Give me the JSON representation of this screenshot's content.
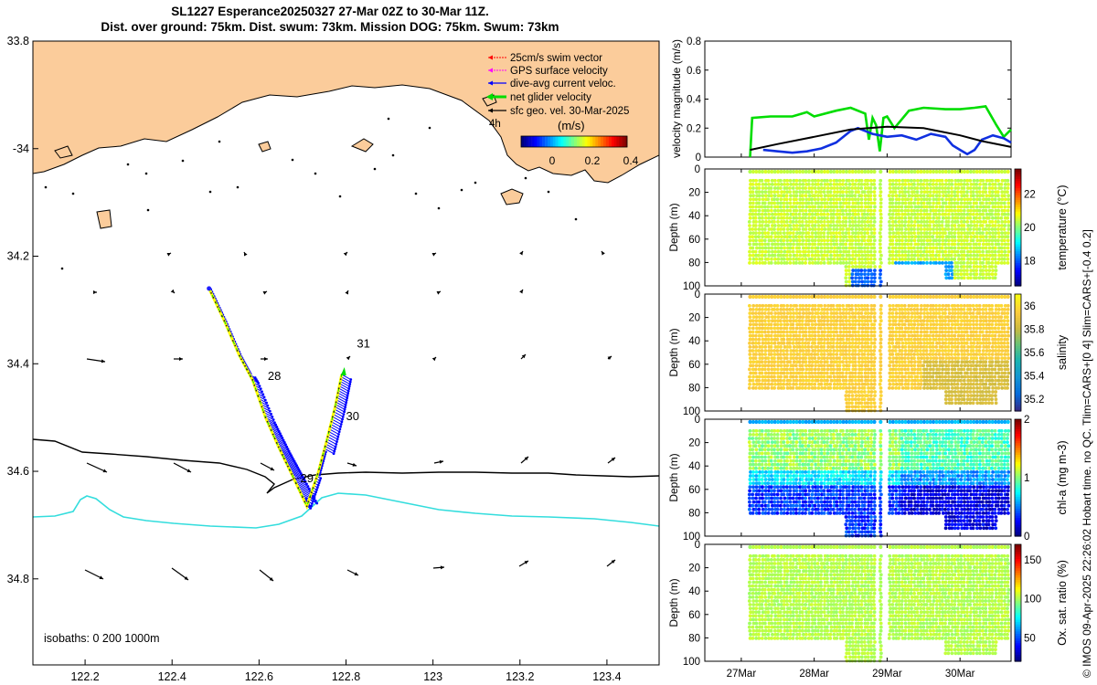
{
  "title": {
    "line1": "SL1227 Esperance20250327 27-Mar 02Z to 30-Mar 11Z.",
    "line2": "Dist. over ground: 75km. Dist. swum: 73km. Mission DOG: 75km. Swum: 73km"
  },
  "footer_note": "© IMOS 09-Apr-2025 22:26:02 Hobart time. no QC. Tlim=CARS+[0 4] Slim=CARS+[-0.4 0.2]",
  "colors": {
    "land": "#fbcc9b",
    "isobath_200": "#000000",
    "isobath_1000": "#33dddd",
    "track": "#ffff00",
    "gps_velocity": "#ff00ff",
    "swim_vector": "#ff0000",
    "current_vector": "#0000ff",
    "net_velocity": "#00dd00",
    "sfc_geo": "#000000"
  },
  "map": {
    "lon_ticks": [
      "122.2",
      "122.4",
      "122.6",
      "122.8",
      "123",
      "123.2",
      "123.4"
    ],
    "lon_range": [
      122.08,
      123.52
    ],
    "lat_ticks": [
      "33.8",
      "-34",
      "34.2",
      "34.4",
      "34.6",
      "34.8"
    ],
    "lat_tick_values": [
      33.8,
      34.0,
      34.2,
      34.4,
      34.6,
      34.8
    ],
    "lat_range": [
      33.8,
      34.96
    ],
    "legend_items": [
      {
        "label": "25cm/s swim vector",
        "color": "#ff0000"
      },
      {
        "label": "GPS surface velocity",
        "color": "#ff00ff"
      },
      {
        "label": "dive-avg current veloc.",
        "color": "#0000ff"
      },
      {
        "label": "net glider velocity",
        "color": "#00dd00"
      },
      {
        "label": "sfc geo. vel. 30-Mar-2025",
        "color": "#000000"
      }
    ],
    "legend_extra": "4h",
    "colorbar_title": "(m/s)",
    "colorbar_ticks": [
      "0",
      "0.2",
      "0.4"
    ],
    "isobath_label": "isobaths: 0   200  1000m",
    "day_labels": [
      {
        "text": "28",
        "lon": 122.62,
        "lat": 34.43
      },
      {
        "text": "29",
        "lon": 122.695,
        "lat": 34.62
      },
      {
        "text": "30",
        "lon": 122.8,
        "lat": 34.505
      },
      {
        "text": "31",
        "lon": 122.825,
        "lat": 34.37
      }
    ],
    "track": [
      [
        122.485,
        34.26
      ],
      [
        122.52,
        34.32
      ],
      [
        122.555,
        34.385
      ],
      [
        122.585,
        34.43
      ],
      [
        122.615,
        34.5
      ],
      [
        122.645,
        34.555
      ],
      [
        122.675,
        34.605
      ],
      [
        122.71,
        34.665
      ],
      [
        122.735,
        34.605
      ],
      [
        122.755,
        34.545
      ],
      [
        122.775,
        34.48
      ],
      [
        122.79,
        34.42
      ]
    ]
  },
  "chart_data": [
    {
      "type": "line",
      "ylabel": "velocity magnitude (m/s)",
      "ylim": [
        0,
        0.8
      ],
      "yticks": [
        "0",
        "0.2",
        "0.4",
        "0.6",
        "0.8"
      ],
      "x_range_days": [
        26.5,
        30.7
      ],
      "series": [
        {
          "name": "net glider velocity",
          "color": "#00dd00",
          "x": [
            27.12,
            27.15,
            27.4,
            27.7,
            27.9,
            28.0,
            28.3,
            28.5,
            28.7,
            28.75,
            28.8,
            28.85,
            28.9,
            28.95,
            29.0,
            29.1,
            29.3,
            29.5,
            29.8,
            30.0,
            30.2,
            30.35,
            30.5,
            30.6,
            30.7
          ],
          "y": [
            0.0,
            0.27,
            0.28,
            0.28,
            0.31,
            0.28,
            0.32,
            0.34,
            0.3,
            0.12,
            0.27,
            0.22,
            0.04,
            0.27,
            0.28,
            0.2,
            0.32,
            0.34,
            0.33,
            0.33,
            0.34,
            0.35,
            0.22,
            0.14,
            0.19
          ]
        },
        {
          "name": "dive-avg current",
          "color": "#1030e0",
          "x": [
            27.3,
            27.5,
            27.7,
            27.9,
            28.1,
            28.3,
            28.5,
            28.6,
            28.7,
            28.8,
            28.9,
            29.0,
            29.2,
            29.4,
            29.6,
            29.8,
            29.9,
            30.0,
            30.1,
            30.2,
            30.3,
            30.45,
            30.6,
            30.7
          ],
          "y": [
            0.05,
            0.04,
            0.03,
            0.04,
            0.06,
            0.1,
            0.18,
            0.2,
            0.18,
            0.16,
            0.15,
            0.14,
            0.15,
            0.12,
            0.16,
            0.14,
            0.08,
            0.05,
            0.02,
            0.05,
            0.12,
            0.15,
            0.13,
            0.1
          ]
        },
        {
          "name": "sfc geo. vel.",
          "color": "#000000",
          "x": [
            27.12,
            27.5,
            28.0,
            28.5,
            29.0,
            29.5,
            30.0,
            30.3,
            30.7
          ],
          "y": [
            0.05,
            0.09,
            0.14,
            0.19,
            0.21,
            0.2,
            0.15,
            0.11,
            0.07
          ]
        }
      ]
    },
    {
      "type": "heatmap",
      "ylabel": "Depth (m)",
      "yticks": [
        "0",
        "20",
        "40",
        "60",
        "80",
        "100"
      ],
      "variable": "temperature (°C)",
      "clim": [
        16.5,
        23.5
      ],
      "cticks": [
        {
          "v": 18,
          "t": "18"
        },
        {
          "v": 20,
          "t": "20"
        },
        {
          "v": 22,
          "t": "22"
        }
      ],
      "base_value": 20.5
    },
    {
      "type": "heatmap",
      "ylabel": "Depth (m)",
      "yticks": [
        "0",
        "20",
        "40",
        "60",
        "80",
        "100"
      ],
      "variable": "salinity",
      "clim": [
        35.1,
        36.1
      ],
      "cticks": [
        {
          "v": 35.2,
          "t": "35.2"
        },
        {
          "v": 35.4,
          "t": "35.4"
        },
        {
          "v": 35.6,
          "t": "35.6"
        },
        {
          "v": 35.8,
          "t": "35.8"
        },
        {
          "v": 36,
          "t": "36"
        }
      ],
      "base_value": 35.97
    },
    {
      "type": "heatmap",
      "ylabel": "Depth (m)",
      "yticks": [
        "0",
        "20",
        "40",
        "60",
        "80",
        "100"
      ],
      "variable": "chl-a (mg m-3)",
      "clim": [
        0,
        2
      ],
      "cticks": [
        {
          "v": 0,
          "t": "0"
        },
        {
          "v": 1,
          "t": "1"
        },
        {
          "v": 2,
          "t": "2"
        }
      ],
      "base_value": 0.6
    },
    {
      "type": "heatmap",
      "ylabel": "Depth (m)",
      "yticks": [
        "0",
        "20",
        "40",
        "60",
        "80",
        "100"
      ],
      "variable": "Ox. sat. ratio (%)",
      "clim": [
        20,
        170
      ],
      "cticks": [
        {
          "v": 50,
          "t": "50"
        },
        {
          "v": 100,
          "t": "100"
        },
        {
          "v": 150,
          "t": "150"
        }
      ],
      "base_value": 103
    }
  ],
  "time_axis": {
    "ticks": [
      {
        "v": 27,
        "t": "27Mar"
      },
      {
        "v": 28,
        "t": "28Mar"
      },
      {
        "v": 29,
        "t": "29Mar"
      },
      {
        "v": 30,
        "t": "30Mar"
      }
    ],
    "range": [
      26.5,
      30.7
    ]
  }
}
